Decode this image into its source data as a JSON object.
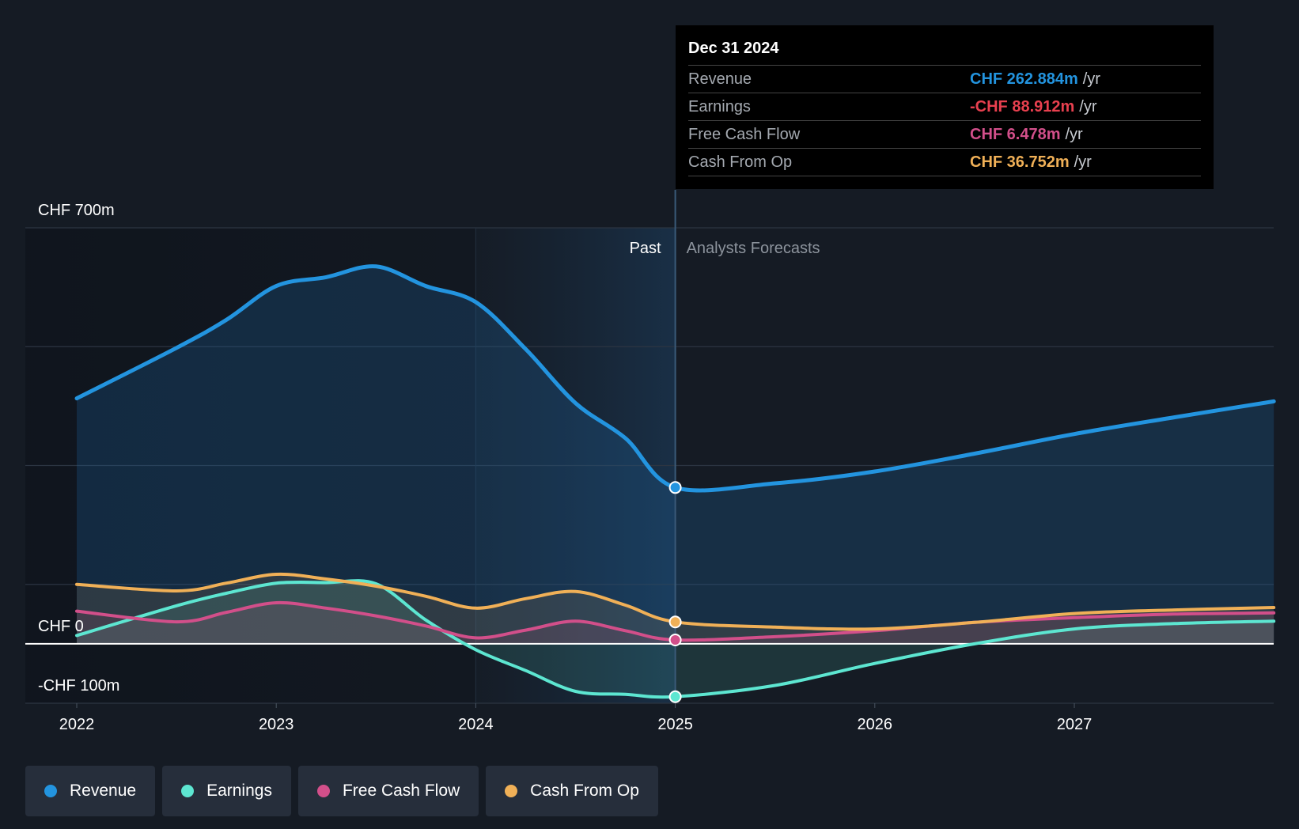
{
  "chart_data": {
    "type": "area",
    "currency": "CHF",
    "x_ticks": [
      "2022",
      "2023",
      "2024",
      "2025",
      "2026",
      "2027"
    ],
    "y_labels": {
      "top": "CHF 700m",
      "zero": "CHF 0",
      "bottom": "-CHF 100m"
    },
    "ylim": [
      -100,
      700
    ],
    "sections": {
      "past": "Past",
      "forecast": "Analysts Forecasts"
    },
    "divider_x": 2025.0,
    "series": [
      {
        "name": "Revenue",
        "color": "#2394df",
        "points": [
          [
            2022,
            413
          ],
          [
            2022.5,
            498
          ],
          [
            2022.75,
            545
          ],
          [
            2023,
            602
          ],
          [
            2023.25,
            617
          ],
          [
            2023.5,
            635
          ],
          [
            2023.75,
            602
          ],
          [
            2024,
            575
          ],
          [
            2024.25,
            496
          ],
          [
            2024.5,
            405
          ],
          [
            2024.75,
            346
          ],
          [
            2025,
            263
          ],
          [
            2025.5,
            270
          ],
          [
            2026,
            290
          ],
          [
            2026.5,
            320
          ],
          [
            2027,
            353
          ],
          [
            2027.5,
            381
          ],
          [
            2028,
            408
          ]
        ]
      },
      {
        "name": "Earnings",
        "color": "#5de6d1",
        "points": [
          [
            2022,
            14
          ],
          [
            2022.5,
            64
          ],
          [
            2022.75,
            85
          ],
          [
            2023,
            102
          ],
          [
            2023.25,
            103
          ],
          [
            2023.5,
            101
          ],
          [
            2023.75,
            40
          ],
          [
            2024,
            -10
          ],
          [
            2024.25,
            -45
          ],
          [
            2024.5,
            -80
          ],
          [
            2024.75,
            -85
          ],
          [
            2025,
            -89
          ],
          [
            2025.5,
            -70
          ],
          [
            2026,
            -33
          ],
          [
            2026.5,
            0
          ],
          [
            2027,
            25
          ],
          [
            2027.5,
            34
          ],
          [
            2028,
            38
          ]
        ]
      },
      {
        "name": "Free Cash Flow",
        "color": "#d24f8a",
        "points": [
          [
            2022,
            55
          ],
          [
            2022.5,
            37
          ],
          [
            2022.75,
            53
          ],
          [
            2023,
            69
          ],
          [
            2023.25,
            60
          ],
          [
            2023.5,
            47
          ],
          [
            2023.75,
            30
          ],
          [
            2024,
            10
          ],
          [
            2024.25,
            23
          ],
          [
            2024.5,
            38
          ],
          [
            2024.75,
            22
          ],
          [
            2025,
            6.5
          ],
          [
            2025.5,
            12
          ],
          [
            2026,
            22
          ],
          [
            2026.5,
            36
          ],
          [
            2027,
            44
          ],
          [
            2027.5,
            50
          ],
          [
            2028,
            52
          ]
        ]
      },
      {
        "name": "Cash From Op",
        "color": "#f0b057",
        "points": [
          [
            2022,
            100
          ],
          [
            2022.5,
            89
          ],
          [
            2022.75,
            102
          ],
          [
            2023,
            117
          ],
          [
            2023.25,
            109
          ],
          [
            2023.5,
            97
          ],
          [
            2023.75,
            80
          ],
          [
            2024,
            60
          ],
          [
            2024.25,
            76
          ],
          [
            2024.5,
            88
          ],
          [
            2024.75,
            65
          ],
          [
            2025,
            36.8
          ],
          [
            2025.5,
            28
          ],
          [
            2026,
            25
          ],
          [
            2026.5,
            36
          ],
          [
            2027,
            51
          ],
          [
            2027.5,
            57
          ],
          [
            2028,
            61
          ]
        ]
      }
    ],
    "tooltip": {
      "date": "Dec 31 2024",
      "rows": [
        {
          "label": "Revenue",
          "value": "CHF 262.884m",
          "unit": "/yr",
          "color": "#2394df"
        },
        {
          "label": "Earnings",
          "value": "-CHF 88.912m",
          "unit": "/yr",
          "color": "#e8404f"
        },
        {
          "label": "Free Cash Flow",
          "value": "CHF 6.478m",
          "unit": "/yr",
          "color": "#d24f8a"
        },
        {
          "label": "Cash From Op",
          "value": "CHF 36.752m",
          "unit": "/yr",
          "color": "#f0b057"
        }
      ]
    },
    "legend": [
      {
        "label": "Revenue",
        "color": "#2394df"
      },
      {
        "label": "Earnings",
        "color": "#5de6d1"
      },
      {
        "label": "Free Cash Flow",
        "color": "#d24f8a"
      },
      {
        "label": "Cash From Op",
        "color": "#f0b057"
      }
    ]
  }
}
